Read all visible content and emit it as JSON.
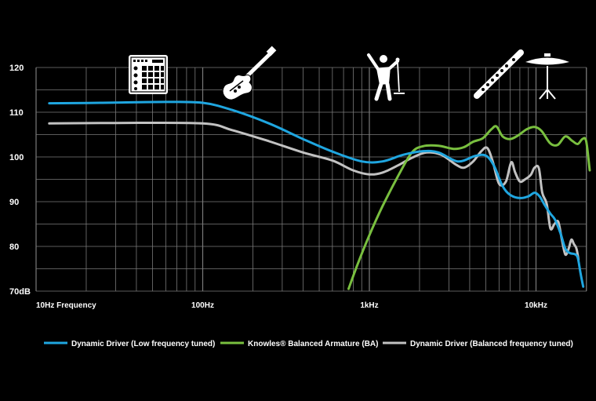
{
  "chart_data": {
    "type": "line",
    "x_scale": "log",
    "xlim": [
      10,
      22000
    ],
    "ylim": [
      70,
      120
    ],
    "y_unit_label": "70dB",
    "y_ticks": [
      {
        "value": 120,
        "label": "120"
      },
      {
        "value": 110,
        "label": "110"
      },
      {
        "value": 100,
        "label": "100"
      },
      {
        "value": 90,
        "label": "90"
      },
      {
        "value": 80,
        "label": "80"
      },
      {
        "value": 70,
        "label": "70dB"
      }
    ],
    "x_ticks": [
      {
        "value": 10,
        "label": "10Hz Frequency"
      },
      {
        "value": 100,
        "label": "100Hz"
      },
      {
        "value": 1000,
        "label": "1kHz"
      },
      {
        "value": 10000,
        "label": "10kHz"
      }
    ],
    "grid": true,
    "legend_position": "bottom",
    "series": [
      {
        "name": "Dynamic Driver (Low frequency tuned)",
        "color": "#1fa6e0",
        "points": [
          [
            12,
            112
          ],
          [
            25,
            112.1
          ],
          [
            60,
            112.3
          ],
          [
            100,
            112.1
          ],
          [
            150,
            110.5
          ],
          [
            250,
            107.5
          ],
          [
            400,
            104
          ],
          [
            600,
            101.2
          ],
          [
            900,
            99
          ],
          [
            1200,
            99
          ],
          [
            1600,
            100.5
          ],
          [
            2100,
            101.3
          ],
          [
            2600,
            101
          ],
          [
            3400,
            99
          ],
          [
            4300,
            100.2
          ],
          [
            5000,
            100.3
          ],
          [
            5600,
            98
          ],
          [
            6300,
            93.5
          ],
          [
            7000,
            91.5
          ],
          [
            8000,
            90.8
          ],
          [
            9000,
            91.2
          ],
          [
            9800,
            92
          ],
          [
            10500,
            91.2
          ],
          [
            11300,
            89.2
          ],
          [
            12200,
            87.3
          ],
          [
            13000,
            86
          ],
          [
            14000,
            83
          ],
          [
            15000,
            79.5
          ],
          [
            16000,
            78.5
          ],
          [
            17000,
            78.3
          ],
          [
            17800,
            77.5
          ],
          [
            18500,
            74
          ],
          [
            19200,
            71
          ]
        ]
      },
      {
        "name": "Knowles® Balanced Armature (BA)",
        "color": "#79bf3f",
        "points": [
          [
            750,
            70.5
          ],
          [
            850,
            76
          ],
          [
            1000,
            82.5
          ],
          [
            1200,
            89
          ],
          [
            1500,
            96
          ],
          [
            1800,
            101
          ],
          [
            2100,
            102.4
          ],
          [
            2600,
            102.5
          ],
          [
            3200,
            101.8
          ],
          [
            3700,
            102.2
          ],
          [
            4200,
            103.4
          ],
          [
            4800,
            104.2
          ],
          [
            5400,
            106.2
          ],
          [
            5800,
            106.8
          ],
          [
            6300,
            104.6
          ],
          [
            7000,
            104
          ],
          [
            7800,
            104.8
          ],
          [
            8800,
            106.2
          ],
          [
            9800,
            106.7
          ],
          [
            10800,
            105.8
          ],
          [
            12200,
            103
          ],
          [
            13500,
            102.7
          ],
          [
            15000,
            104.6
          ],
          [
            16500,
            103.6
          ],
          [
            17800,
            102.9
          ],
          [
            19000,
            104
          ],
          [
            20000,
            103.5
          ],
          [
            21000,
            97
          ]
        ]
      },
      {
        "name": "Dynamic Driver (Balanced frequency tuned)",
        "color": "#c2c2c2",
        "points": [
          [
            12,
            107.5
          ],
          [
            30,
            107.6
          ],
          [
            100,
            107.5
          ],
          [
            150,
            106
          ],
          [
            250,
            103.5
          ],
          [
            400,
            101
          ],
          [
            600,
            99.2
          ],
          [
            800,
            97
          ],
          [
            1000,
            96.1
          ],
          [
            1200,
            96.5
          ],
          [
            1500,
            98.2
          ],
          [
            1800,
            99.8
          ],
          [
            2200,
            101
          ],
          [
            2700,
            100.5
          ],
          [
            3300,
            98.3
          ],
          [
            3700,
            97.6
          ],
          [
            4200,
            99
          ],
          [
            4700,
            101.3
          ],
          [
            5100,
            102
          ],
          [
            5500,
            99
          ],
          [
            6000,
            94
          ],
          [
            6600,
            94.5
          ],
          [
            7100,
            98.8
          ],
          [
            7500,
            96.5
          ],
          [
            8000,
            94.5
          ],
          [
            8600,
            95
          ],
          [
            9300,
            96
          ],
          [
            9800,
            97.6
          ],
          [
            10400,
            97.5
          ],
          [
            10900,
            92
          ],
          [
            11600,
            89.5
          ],
          [
            12200,
            84
          ],
          [
            12900,
            85
          ],
          [
            13600,
            85.5
          ],
          [
            14300,
            81.5
          ],
          [
            15000,
            78.2
          ],
          [
            15700,
            79.5
          ],
          [
            16300,
            81.5
          ],
          [
            16900,
            80.5
          ],
          [
            17500,
            79.5
          ],
          [
            18000,
            77
          ]
        ]
      }
    ]
  }
}
